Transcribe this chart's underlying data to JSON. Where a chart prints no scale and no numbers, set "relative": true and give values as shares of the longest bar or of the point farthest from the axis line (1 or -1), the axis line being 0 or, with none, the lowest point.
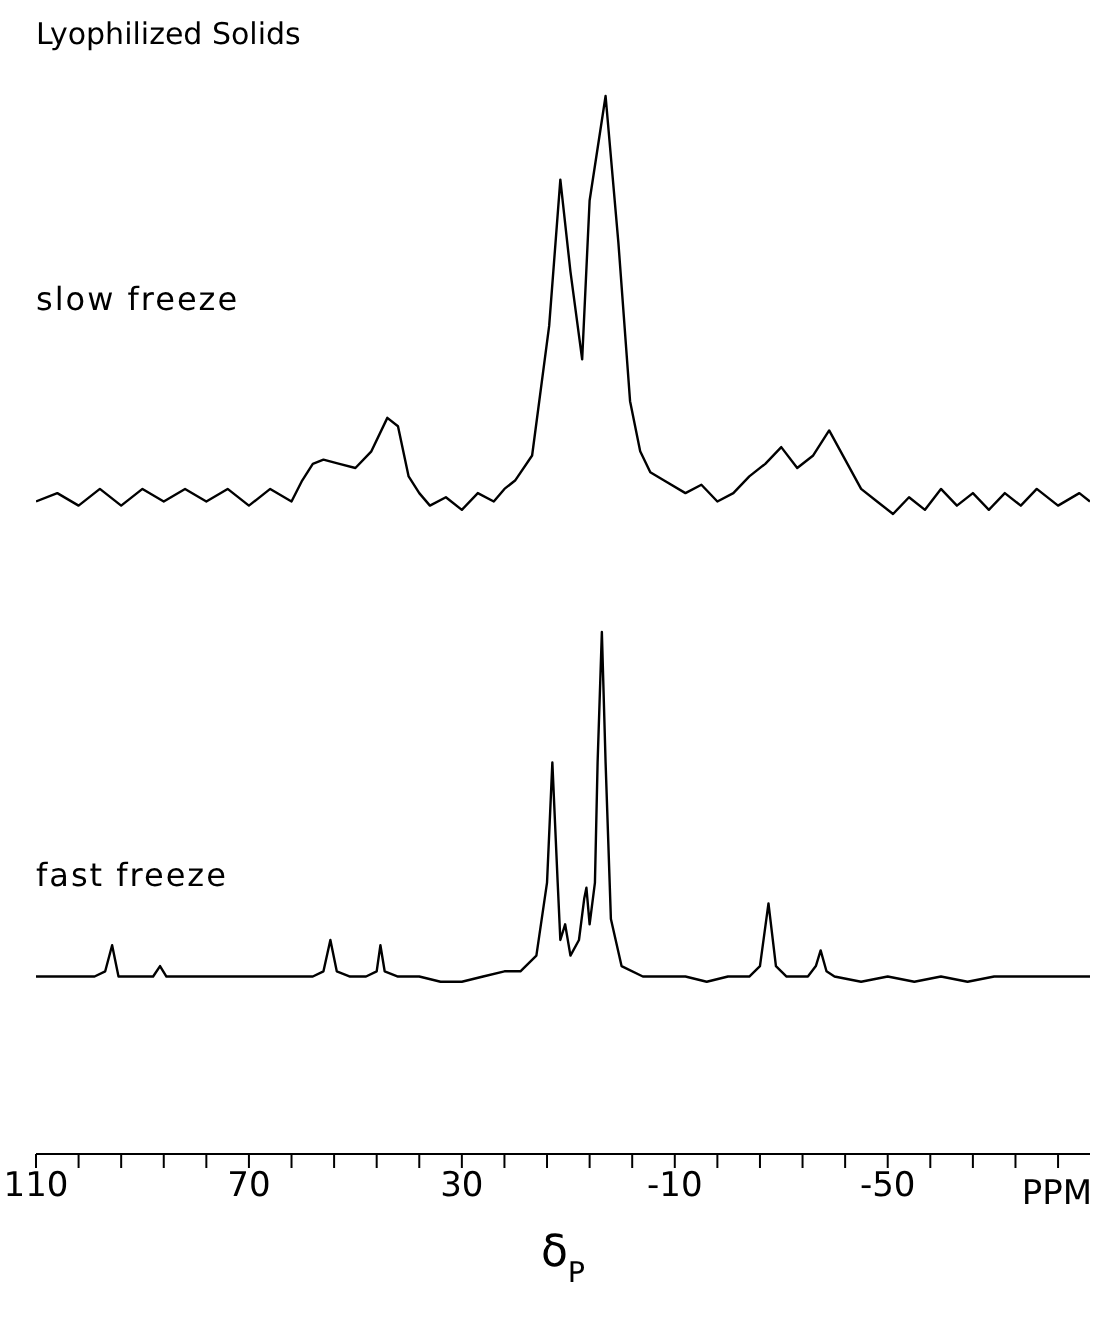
{
  "chart_data": [
    {
      "type": "line",
      "title": "Lyophilized Solids",
      "relative": true,
      "tick_labels": false,
      "xlim": [
        110,
        -88
      ],
      "x": [
        110,
        106,
        102,
        98,
        94,
        90,
        86,
        82,
        78,
        74,
        70,
        66,
        62,
        60,
        58,
        56,
        53,
        50,
        47,
        44,
        42,
        40,
        38,
        36,
        33,
        30,
        27,
        24,
        22,
        20,
        16.8,
        13.6,
        11.5,
        9.6,
        7.4,
        6,
        3,
        0.6,
        -1.6,
        -3.5,
        -5.4,
        -8,
        -12,
        -15,
        -18,
        -21,
        -24,
        -27,
        -30,
        -33,
        -36,
        -39,
        -42,
        -45,
        -48,
        -51,
        -54,
        -57,
        -60,
        -63,
        -66,
        -69,
        -72,
        -75,
        -78,
        -82,
        -86,
        -88
      ],
      "series": [
        {
          "name": "slow freeze",
          "color": "#000000",
          "values": [
            0.03,
            0.05,
            0.02,
            0.06,
            0.02,
            0.06,
            0.03,
            0.06,
            0.03,
            0.06,
            0.02,
            0.06,
            0.03,
            0.08,
            0.12,
            0.13,
            0.12,
            0.11,
            0.15,
            0.23,
            0.21,
            0.09,
            0.05,
            0.02,
            0.04,
            0.01,
            0.05,
            0.03,
            0.06,
            0.08,
            0.14,
            0.45,
            0.8,
            0.58,
            0.37,
            0.75,
            1,
            0.65,
            0.27,
            0.15,
            0.1,
            0.08,
            0.05,
            0.07,
            0.03,
            0.05,
            0.09,
            0.12,
            0.16,
            0.11,
            0.14,
            0.2,
            0.13,
            0.06,
            0.03,
            0,
            0.04,
            0.01,
            0.06,
            0.02,
            0.05,
            0.01,
            0.05,
            0.02,
            0.06,
            0.02,
            0.05,
            0.03
          ]
        }
      ]
    },
    {
      "type": "line",
      "relative": true,
      "xlim": [
        110,
        -88
      ],
      "xlabel": "δ$_{P}$",
      "annotations": [
        "PPM"
      ],
      "xticks": [
        110,
        {
          "value": 102,
          "label": null
        },
        {
          "value": 94,
          "label": null
        },
        {
          "value": 86,
          "label": null
        },
        {
          "value": 78,
          "label": null
        },
        70,
        {
          "value": 62,
          "label": null
        },
        {
          "value": 54,
          "label": null
        },
        {
          "value": 46,
          "label": null
        },
        {
          "value": 38,
          "label": null
        },
        30,
        {
          "value": 22,
          "label": null
        },
        {
          "value": 14,
          "label": null
        },
        {
          "value": 6,
          "label": null
        },
        {
          "value": -2,
          "label": null
        },
        -10,
        {
          "value": -18,
          "label": null
        },
        {
          "value": -26,
          "label": null
        },
        {
          "value": -34,
          "label": null
        },
        {
          "value": -42,
          "label": null
        },
        -50,
        {
          "value": -58,
          "label": null
        },
        {
          "value": -66,
          "label": null
        },
        {
          "value": -74,
          "label": null
        },
        {
          "value": -82,
          "label": null
        }
      ],
      "x": [
        110,
        106,
        102,
        99,
        97,
        95.7,
        94.5,
        91,
        88,
        86.7,
        85.5,
        82,
        78,
        74,
        70,
        66,
        62,
        58,
        56,
        54.7,
        53.5,
        51,
        48,
        46,
        45.3,
        44.5,
        42,
        38,
        34,
        30,
        26,
        22,
        19,
        16,
        14,
        13,
        12,
        11.5,
        10.6,
        9.6,
        8,
        7,
        6.6,
        6,
        5,
        4.5,
        3.7,
        3,
        2,
        0,
        -4,
        -8,
        -12,
        -16,
        -20,
        -24,
        -26,
        -27.6,
        -29,
        -31,
        -35,
        -36.5,
        -37.4,
        -38.5,
        -40,
        -45,
        -50,
        -55,
        -60,
        -65,
        -70,
        -75,
        -80,
        -85,
        -88
      ],
      "series": [
        {
          "name": "fast freeze",
          "color": "#000000",
          "values": [
            0.34,
            0.34,
            0.34,
            0.34,
            0.35,
            0.4,
            0.34,
            0.34,
            0.34,
            0.36,
            0.34,
            0.34,
            0.34,
            0.34,
            0.34,
            0.34,
            0.34,
            0.34,
            0.35,
            0.41,
            0.35,
            0.34,
            0.34,
            0.35,
            0.4,
            0.35,
            0.34,
            0.34,
            0.33,
            0.33,
            0.34,
            0.35,
            0.35,
            0.38,
            0.52,
            0.75,
            0.52,
            0.41,
            0.44,
            0.38,
            0.41,
            0.49,
            0.51,
            0.44,
            0.52,
            0.75,
            1,
            0.75,
            0.45,
            0.36,
            0.34,
            0.34,
            0.34,
            0.33,
            0.34,
            0.34,
            0.36,
            0.48,
            0.36,
            0.34,
            0.34,
            0.36,
            0.39,
            0.35,
            0.34,
            0.33,
            0.34,
            0.33,
            0.34,
            0.33,
            0.34,
            0.34,
            0.34,
            0.34,
            0.34
          ]
        }
      ]
    }
  ]
}
